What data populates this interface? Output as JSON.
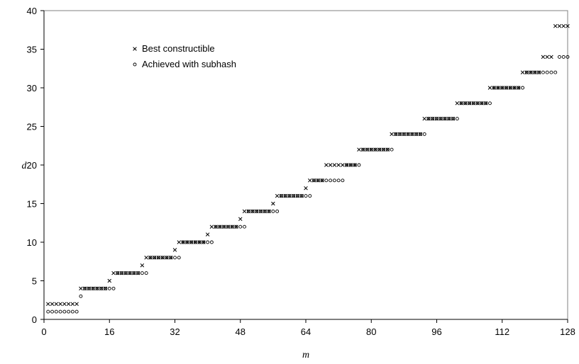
{
  "chart_data": {
    "type": "scatter",
    "xlabel": "m",
    "ylabel": "d",
    "xlim": [
      0,
      128
    ],
    "ylim": [
      0,
      40
    ],
    "xticks": [
      0,
      16,
      32,
      48,
      64,
      80,
      96,
      112,
      128
    ],
    "yticks": [
      0,
      5,
      10,
      15,
      20,
      25,
      30,
      35,
      40
    ],
    "grid": false,
    "legend_position": "top-left",
    "series": [
      {
        "name": "Best constructible",
        "marker": "x",
        "color": "#000000",
        "points": [
          [
            1,
            2
          ],
          [
            2,
            2
          ],
          [
            3,
            2
          ],
          [
            4,
            2
          ],
          [
            5,
            2
          ],
          [
            6,
            2
          ],
          [
            7,
            2
          ],
          [
            8,
            2
          ],
          [
            9,
            4
          ],
          [
            10,
            4
          ],
          [
            11,
            4
          ],
          [
            12,
            4
          ],
          [
            13,
            4
          ],
          [
            14,
            4
          ],
          [
            15,
            4
          ],
          [
            16,
            5
          ],
          [
            17,
            6
          ],
          [
            18,
            6
          ],
          [
            19,
            6
          ],
          [
            20,
            6
          ],
          [
            21,
            6
          ],
          [
            22,
            6
          ],
          [
            23,
            6
          ],
          [
            24,
            7
          ],
          [
            25,
            8
          ],
          [
            26,
            8
          ],
          [
            27,
            8
          ],
          [
            28,
            8
          ],
          [
            29,
            8
          ],
          [
            30,
            8
          ],
          [
            31,
            8
          ],
          [
            32,
            9
          ],
          [
            33,
            10
          ],
          [
            34,
            10
          ],
          [
            35,
            10
          ],
          [
            36,
            10
          ],
          [
            37,
            10
          ],
          [
            38,
            10
          ],
          [
            39,
            10
          ],
          [
            40,
            11
          ],
          [
            41,
            12
          ],
          [
            42,
            12
          ],
          [
            43,
            12
          ],
          [
            44,
            12
          ],
          [
            45,
            12
          ],
          [
            46,
            12
          ],
          [
            47,
            12
          ],
          [
            48,
            13
          ],
          [
            49,
            14
          ],
          [
            50,
            14
          ],
          [
            51,
            14
          ],
          [
            52,
            14
          ],
          [
            53,
            14
          ],
          [
            54,
            14
          ],
          [
            55,
            14
          ],
          [
            56,
            15
          ],
          [
            57,
            16
          ],
          [
            58,
            16
          ],
          [
            59,
            16
          ],
          [
            60,
            16
          ],
          [
            61,
            16
          ],
          [
            62,
            16
          ],
          [
            63,
            16
          ],
          [
            64,
            17
          ],
          [
            65,
            18
          ],
          [
            66,
            18
          ],
          [
            67,
            18
          ],
          [
            68,
            18
          ],
          [
            69,
            20
          ],
          [
            70,
            20
          ],
          [
            71,
            20
          ],
          [
            72,
            20
          ],
          [
            73,
            20
          ],
          [
            74,
            20
          ],
          [
            75,
            20
          ],
          [
            76,
            20
          ],
          [
            77,
            22
          ],
          [
            78,
            22
          ],
          [
            79,
            22
          ],
          [
            80,
            22
          ],
          [
            81,
            22
          ],
          [
            82,
            22
          ],
          [
            83,
            22
          ],
          [
            84,
            22
          ],
          [
            85,
            24
          ],
          [
            86,
            24
          ],
          [
            87,
            24
          ],
          [
            88,
            24
          ],
          [
            89,
            24
          ],
          [
            90,
            24
          ],
          [
            91,
            24
          ],
          [
            92,
            24
          ],
          [
            93,
            26
          ],
          [
            94,
            26
          ],
          [
            95,
            26
          ],
          [
            96,
            26
          ],
          [
            97,
            26
          ],
          [
            98,
            26
          ],
          [
            99,
            26
          ],
          [
            100,
            26
          ],
          [
            101,
            28
          ],
          [
            102,
            28
          ],
          [
            103,
            28
          ],
          [
            104,
            28
          ],
          [
            105,
            28
          ],
          [
            106,
            28
          ],
          [
            107,
            28
          ],
          [
            108,
            28
          ],
          [
            109,
            30
          ],
          [
            110,
            30
          ],
          [
            111,
            30
          ],
          [
            112,
            30
          ],
          [
            113,
            30
          ],
          [
            114,
            30
          ],
          [
            115,
            30
          ],
          [
            116,
            30
          ],
          [
            117,
            32
          ],
          [
            118,
            32
          ],
          [
            119,
            32
          ],
          [
            120,
            32
          ],
          [
            121,
            32
          ],
          [
            122,
            34
          ],
          [
            123,
            34
          ],
          [
            124,
            34
          ],
          [
            125,
            38
          ],
          [
            126,
            38
          ],
          [
            127,
            38
          ],
          [
            128,
            38
          ]
        ]
      },
      {
        "name": "Achieved with subhash",
        "marker": "o",
        "color": "#000000",
        "points": [
          [
            1,
            1
          ],
          [
            2,
            1
          ],
          [
            3,
            1
          ],
          [
            4,
            1
          ],
          [
            5,
            1
          ],
          [
            6,
            1
          ],
          [
            7,
            1
          ],
          [
            8,
            1
          ],
          [
            9,
            3
          ],
          [
            10,
            4
          ],
          [
            11,
            4
          ],
          [
            12,
            4
          ],
          [
            13,
            4
          ],
          [
            14,
            4
          ],
          [
            15,
            4
          ],
          [
            16,
            4
          ],
          [
            17,
            4
          ],
          [
            18,
            6
          ],
          [
            19,
            6
          ],
          [
            20,
            6
          ],
          [
            21,
            6
          ],
          [
            22,
            6
          ],
          [
            23,
            6
          ],
          [
            24,
            6
          ],
          [
            25,
            6
          ],
          [
            26,
            8
          ],
          [
            27,
            8
          ],
          [
            28,
            8
          ],
          [
            29,
            8
          ],
          [
            30,
            8
          ],
          [
            31,
            8
          ],
          [
            32,
            8
          ],
          [
            33,
            8
          ],
          [
            34,
            10
          ],
          [
            35,
            10
          ],
          [
            36,
            10
          ],
          [
            37,
            10
          ],
          [
            38,
            10
          ],
          [
            39,
            10
          ],
          [
            40,
            10
          ],
          [
            41,
            10
          ],
          [
            42,
            12
          ],
          [
            43,
            12
          ],
          [
            44,
            12
          ],
          [
            45,
            12
          ],
          [
            46,
            12
          ],
          [
            47,
            12
          ],
          [
            48,
            12
          ],
          [
            49,
            12
          ],
          [
            50,
            14
          ],
          [
            51,
            14
          ],
          [
            52,
            14
          ],
          [
            53,
            14
          ],
          [
            54,
            14
          ],
          [
            55,
            14
          ],
          [
            56,
            14
          ],
          [
            57,
            14
          ],
          [
            58,
            16
          ],
          [
            59,
            16
          ],
          [
            60,
            16
          ],
          [
            61,
            16
          ],
          [
            62,
            16
          ],
          [
            63,
            16
          ],
          [
            64,
            16
          ],
          [
            65,
            16
          ],
          [
            66,
            18
          ],
          [
            67,
            18
          ],
          [
            68,
            18
          ],
          [
            69,
            18
          ],
          [
            70,
            18
          ],
          [
            71,
            18
          ],
          [
            72,
            18
          ],
          [
            73,
            18
          ],
          [
            74,
            20
          ],
          [
            75,
            20
          ],
          [
            76,
            20
          ],
          [
            77,
            20
          ],
          [
            78,
            22
          ],
          [
            79,
            22
          ],
          [
            80,
            22
          ],
          [
            81,
            22
          ],
          [
            82,
            22
          ],
          [
            83,
            22
          ],
          [
            84,
            22
          ],
          [
            85,
            22
          ],
          [
            86,
            24
          ],
          [
            87,
            24
          ],
          [
            88,
            24
          ],
          [
            89,
            24
          ],
          [
            90,
            24
          ],
          [
            91,
            24
          ],
          [
            92,
            24
          ],
          [
            93,
            24
          ],
          [
            94,
            26
          ],
          [
            95,
            26
          ],
          [
            96,
            26
          ],
          [
            97,
            26
          ],
          [
            98,
            26
          ],
          [
            99,
            26
          ],
          [
            100,
            26
          ],
          [
            101,
            26
          ],
          [
            102,
            28
          ],
          [
            103,
            28
          ],
          [
            104,
            28
          ],
          [
            105,
            28
          ],
          [
            106,
            28
          ],
          [
            107,
            28
          ],
          [
            108,
            28
          ],
          [
            109,
            28
          ],
          [
            110,
            30
          ],
          [
            111,
            30
          ],
          [
            112,
            30
          ],
          [
            113,
            30
          ],
          [
            114,
            30
          ],
          [
            115,
            30
          ],
          [
            116,
            30
          ],
          [
            117,
            30
          ],
          [
            118,
            32
          ],
          [
            119,
            32
          ],
          [
            120,
            32
          ],
          [
            121,
            32
          ],
          [
            122,
            32
          ],
          [
            123,
            32
          ],
          [
            124,
            32
          ],
          [
            125,
            32
          ],
          [
            126,
            34
          ],
          [
            127,
            34
          ],
          [
            128,
            34
          ]
        ]
      }
    ]
  }
}
